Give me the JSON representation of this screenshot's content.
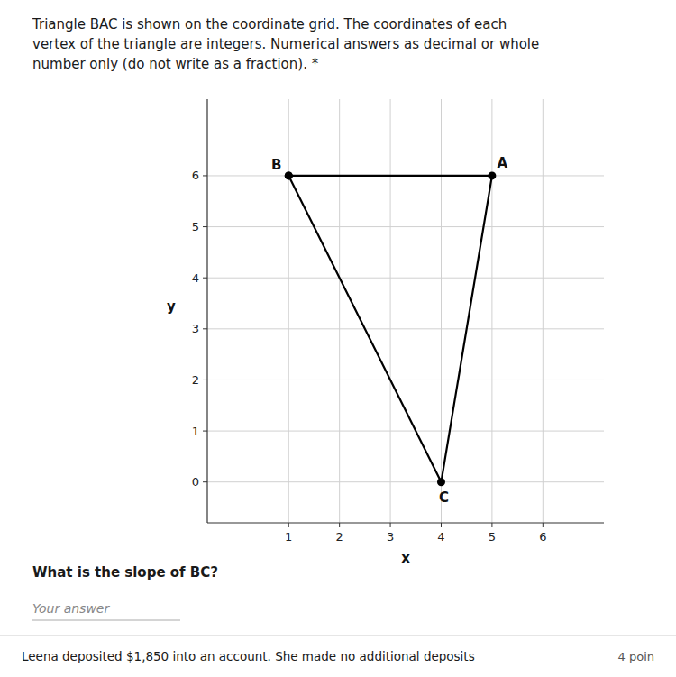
{
  "chart_data": {
    "type": "line",
    "title": "Triangle BAC is shown on the coordinate grid. The coordinates of each\nvertex of the triangle are integers. Numerical answers as decimal or whole\nnumber only (do not write as a fraction). *",
    "xlabel": "x",
    "ylabel": "y",
    "x": [
      1,
      5,
      4,
      1
    ],
    "values": [
      6,
      6,
      0,
      6
    ],
    "color": "#000000",
    "marker": "circle",
    "xlim": [
      -0.6,
      7.2
    ],
    "ylim": [
      -0.8,
      7.5
    ],
    "xticks": [
      1,
      2,
      3,
      4,
      5,
      6
    ],
    "yticks": [
      0,
      1,
      2,
      3,
      4,
      5,
      6
    ],
    "grid": true,
    "annotations": [
      {
        "text": "B",
        "x": 1,
        "y": 6
      },
      {
        "text": "A",
        "x": 5,
        "y": 6
      },
      {
        "text": "C",
        "x": 4,
        "y": 0
      },
      {
        "text": "What is the slope of BC?"
      },
      {
        "text": "Your answer"
      },
      {
        "text": "Leena deposited $1,850 into an account. She made no additional deposits"
      },
      {
        "text": "4 poin"
      }
    ]
  }
}
